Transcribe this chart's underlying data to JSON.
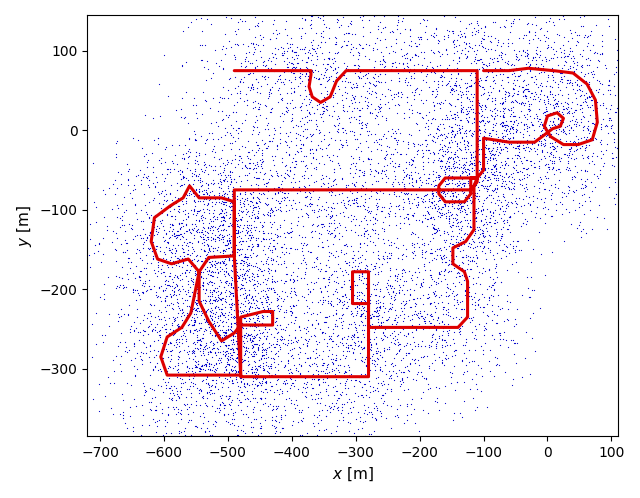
{
  "xlabel": "$x$ [m]",
  "ylabel": "$y$ [m]",
  "xlim": [
    -720,
    110
  ],
  "ylim": [
    -385,
    145
  ],
  "background_color": "#ffffff",
  "trajectory_color": "#dd0000",
  "points_color": "#0000cc",
  "trajectory_linewidth": 2.2,
  "point_size": 3.0,
  "figsize": [
    6.4,
    4.98
  ],
  "dpi": 100
}
